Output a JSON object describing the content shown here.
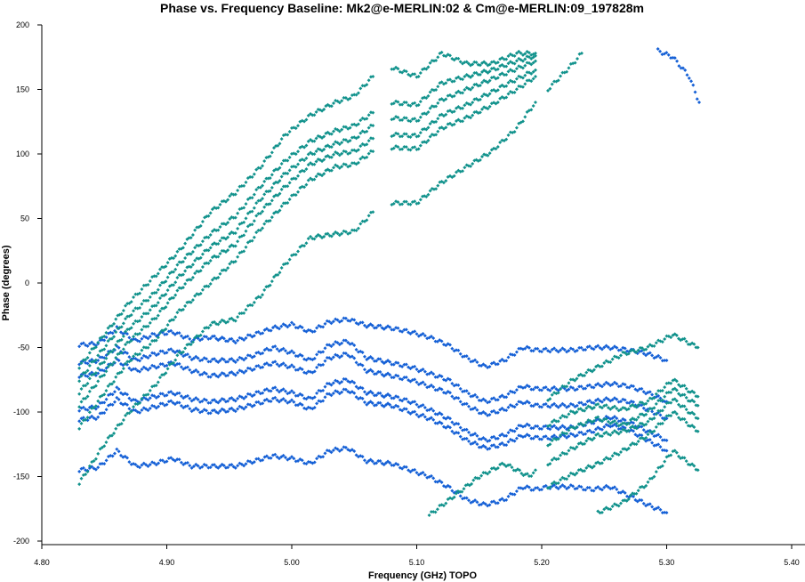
{
  "chart_data": {
    "type": "scatter",
    "title": "Phase vs. Frequency Baseline: Mk2@e-MERLIN:02 & Cm@e-MERLIN:09_197828m",
    "xlabel": "Frequency (GHz) TOPO",
    "ylabel": "Phase (degrees)",
    "xlim": [
      4.8,
      5.4
    ],
    "ylim": [
      -200,
      200
    ],
    "x_ticks": [
      "4.80",
      "4.90",
      "5.00",
      "5.10",
      "5.20",
      "5.30",
      "5.40"
    ],
    "y_ticks": [
      "200",
      "150",
      "100",
      "50",
      "0",
      "-50",
      "-100",
      "-150",
      "-200"
    ],
    "grid": false,
    "colors": {
      "blue": "#1560d6",
      "teal": "#11928c"
    },
    "series": [
      {
        "color": "blue",
        "x": [
          4.83,
          4.845,
          4.86,
          4.875,
          4.89,
          4.905,
          4.92,
          4.935,
          4.955,
          4.97,
          4.985,
          5.0,
          5.015,
          5.03,
          5.045,
          5.06,
          5.08,
          5.095,
          5.11,
          5.125,
          5.14,
          5.155,
          5.17,
          5.185,
          5.195,
          5.205,
          5.225,
          5.24,
          5.255,
          5.27,
          5.285,
          5.3
        ],
        "y": [
          -48,
          -47,
          -35,
          -45,
          -40,
          -38,
          -44,
          -42,
          -45,
          -40,
          -35,
          -32,
          -38,
          -30,
          -28,
          -33,
          -35,
          -38,
          -42,
          -48,
          -58,
          -65,
          -60,
          -50,
          -52,
          -52,
          -52,
          -50,
          -50,
          -52,
          -55,
          -60
        ]
      },
      {
        "color": "blue",
        "x": [
          4.83,
          4.845,
          4.86,
          4.875,
          4.89,
          4.905,
          4.92,
          4.935,
          4.955,
          4.97,
          4.985,
          5.0,
          5.015,
          5.03,
          5.045,
          5.06,
          5.08,
          5.095,
          5.11,
          5.125,
          5.14,
          5.155,
          5.17,
          5.185,
          5.195,
          5.205,
          5.225,
          5.24,
          5.255,
          5.27,
          5.285,
          5.3
        ],
        "y": [
          -62,
          -60,
          -50,
          -60,
          -55,
          -52,
          -58,
          -60,
          -60,
          -56,
          -50,
          -54,
          -60,
          -48,
          -45,
          -58,
          -62,
          -65,
          -70,
          -75,
          -85,
          -92,
          -88,
          -80,
          -82,
          -82,
          -82,
          -80,
          -78,
          -80,
          -85,
          -92
        ]
      },
      {
        "color": "blue",
        "x": [
          4.83,
          4.845,
          4.86,
          4.875,
          4.89,
          4.905,
          4.92,
          4.935,
          4.955,
          4.97,
          4.985,
          5.0,
          5.015,
          5.03,
          5.045,
          5.06,
          5.08,
          5.095,
          5.11,
          5.125,
          5.14,
          5.155,
          5.17,
          5.185,
          5.195,
          5.205,
          5.225,
          5.24,
          5.255,
          5.27,
          5.285,
          5.3
        ],
        "y": [
          -72,
          -70,
          -60,
          -68,
          -65,
          -62,
          -68,
          -72,
          -70,
          -66,
          -62,
          -65,
          -70,
          -58,
          -55,
          -68,
          -72,
          -75,
          -80,
          -85,
          -95,
          -102,
          -98,
          -92,
          -95,
          -95,
          -95,
          -92,
          -90,
          -92,
          -98,
          -105
        ]
      },
      {
        "color": "blue",
        "x": [
          4.83,
          4.845,
          4.86,
          4.875,
          4.89,
          4.905,
          4.92,
          4.935,
          4.955,
          4.97,
          4.985,
          5.0,
          5.015,
          5.03,
          5.045,
          5.06,
          5.08,
          5.095,
          5.11,
          5.125,
          5.14,
          5.155,
          5.17,
          5.185,
          5.195,
          5.205,
          5.225,
          5.24,
          5.255,
          5.27,
          5.285,
          5.3
        ],
        "y": [
          -98,
          -96,
          -82,
          -92,
          -88,
          -85,
          -90,
          -92,
          -90,
          -86,
          -82,
          -85,
          -90,
          -78,
          -75,
          -85,
          -88,
          -92,
          -98,
          -105,
          -115,
          -122,
          -118,
          -110,
          -112,
          -112,
          -112,
          -108,
          -104,
          -108,
          -115,
          -122
        ]
      },
      {
        "color": "blue",
        "x": [
          4.83,
          4.845,
          4.86,
          4.875,
          4.89,
          4.905,
          4.92,
          4.935,
          4.955,
          4.97,
          4.985,
          5.0,
          5.015,
          5.03,
          5.045,
          5.06,
          5.08,
          5.095,
          5.11,
          5.125,
          5.14,
          5.155,
          5.17,
          5.185,
          5.195,
          5.205,
          5.225,
          5.24,
          5.255,
          5.27,
          5.285,
          5.3
        ],
        "y": [
          -106,
          -104,
          -90,
          -100,
          -96,
          -92,
          -98,
          -100,
          -98,
          -94,
          -90,
          -92,
          -98,
          -86,
          -83,
          -93,
          -95,
          -100,
          -105,
          -112,
          -122,
          -128,
          -125,
          -118,
          -120,
          -120,
          -118,
          -115,
          -110,
          -114,
          -122,
          -130
        ]
      },
      {
        "color": "blue",
        "x": [
          4.83,
          4.845,
          4.86,
          4.875,
          4.89,
          4.905,
          4.92,
          4.935,
          4.955,
          4.97,
          4.985,
          5.0,
          5.015,
          5.03,
          5.045,
          5.06,
          5.08,
          5.095,
          5.11,
          5.125,
          5.14,
          5.155,
          5.17,
          5.185,
          5.195,
          5.205,
          5.225,
          5.24,
          5.255,
          5.27,
          5.285,
          5.3
        ],
        "y": [
          -145,
          -143,
          -130,
          -142,
          -140,
          -136,
          -142,
          -142,
          -142,
          -138,
          -134,
          -136,
          -140,
          -130,
          -128,
          -138,
          -140,
          -145,
          -150,
          -158,
          -168,
          -172,
          -168,
          -158,
          -160,
          -158,
          -158,
          -160,
          -158,
          -165,
          -172,
          -178
        ]
      },
      {
        "color": "teal",
        "x": [
          4.83,
          4.85,
          4.87,
          4.89,
          4.91,
          4.935,
          4.955,
          4.975,
          4.995,
          5.015,
          5.035,
          5.05,
          5.065
        ],
        "y": [
          -65,
          -40,
          -15,
          5,
          25,
          55,
          70,
          90,
          115,
          130,
          140,
          145,
          160
        ]
      },
      {
        "color": "teal",
        "x": [
          4.83,
          4.85,
          4.87,
          4.89,
          4.91,
          4.935,
          4.955,
          4.975,
          4.995,
          5.015,
          5.035,
          5.05,
          5.065
        ],
        "y": [
          -75,
          -50,
          -25,
          -8,
          15,
          38,
          52,
          75,
          95,
          110,
          118,
          122,
          132
        ]
      },
      {
        "color": "teal",
        "x": [
          4.83,
          4.85,
          4.87,
          4.89,
          4.91,
          4.935,
          4.955,
          4.975,
          4.995,
          5.015,
          5.035,
          5.05,
          5.065
        ],
        "y": [
          -85,
          -60,
          -35,
          -18,
          5,
          28,
          40,
          65,
          85,
          100,
          108,
          112,
          122
        ]
      },
      {
        "color": "teal",
        "x": [
          4.83,
          4.85,
          4.87,
          4.89,
          4.91,
          4.935,
          4.955,
          4.975,
          4.995,
          5.015,
          5.035,
          5.05,
          5.065
        ],
        "y": [
          -95,
          -70,
          -45,
          -28,
          -5,
          18,
          30,
          55,
          75,
          92,
          100,
          102,
          112
        ]
      },
      {
        "color": "teal",
        "x": [
          4.83,
          4.85,
          4.87,
          4.89,
          4.91,
          4.935,
          4.955,
          4.975,
          4.995,
          5.015,
          5.035,
          5.05,
          5.065
        ],
        "y": [
          -112,
          -85,
          -60,
          -45,
          -22,
          0,
          18,
          42,
          62,
          80,
          90,
          92,
          102
        ]
      },
      {
        "color": "teal",
        "x": [
          4.83,
          4.85,
          4.87,
          4.89,
          4.91,
          4.935,
          4.955,
          4.975,
          4.995,
          5.015,
          5.035,
          5.05,
          5.065
        ],
        "y": [
          -155,
          -125,
          -100,
          -80,
          -55,
          -32,
          -28,
          -10,
          15,
          35,
          38,
          40,
          55
        ]
      },
      {
        "color": "teal",
        "x": [
          5.08,
          5.1,
          5.12,
          5.14,
          5.16,
          5.18,
          5.195
        ],
        "y": [
          167,
          160,
          178,
          170,
          170,
          178,
          178
        ]
      },
      {
        "color": "teal",
        "x": [
          5.08,
          5.1,
          5.12,
          5.14,
          5.16,
          5.18,
          5.195
        ],
        "y": [
          140,
          138,
          155,
          160,
          165,
          172,
          176
        ]
      },
      {
        "color": "teal",
        "x": [
          5.08,
          5.1,
          5.12,
          5.14,
          5.16,
          5.18,
          5.195
        ],
        "y": [
          128,
          126,
          142,
          150,
          158,
          166,
          172
        ]
      },
      {
        "color": "teal",
        "x": [
          5.08,
          5.1,
          5.12,
          5.14,
          5.16,
          5.18,
          5.195
        ],
        "y": [
          115,
          114,
          130,
          138,
          148,
          158,
          165
        ]
      },
      {
        "color": "teal",
        "x": [
          5.08,
          5.1,
          5.12,
          5.14,
          5.16,
          5.18,
          5.195
        ],
        "y": [
          105,
          104,
          120,
          128,
          138,
          150,
          160
        ]
      },
      {
        "color": "teal",
        "x": [
          5.08,
          5.1,
          5.12,
          5.14,
          5.16,
          5.18,
          5.195
        ],
        "y": [
          62,
          62,
          78,
          90,
          102,
          120,
          140
        ]
      },
      {
        "color": "teal",
        "x": [
          5.11,
          5.13,
          5.15,
          5.17,
          5.19,
          5.195
        ],
        "y": [
          -180,
          -165,
          -150,
          -140,
          -150,
          -145
        ]
      },
      {
        "color": "teal",
        "x": [
          5.205,
          5.215,
          5.225,
          5.232
        ],
        "y": [
          150,
          160,
          170,
          178
        ]
      },
      {
        "color": "teal",
        "x": [
          5.205,
          5.225,
          5.245,
          5.265,
          5.285,
          5.305,
          5.325
        ],
        "y": [
          -90,
          -75,
          -65,
          -55,
          -50,
          -40,
          -50
        ]
      },
      {
        "color": "teal",
        "x": [
          5.205,
          5.225,
          5.245,
          5.265,
          5.285,
          5.305,
          5.325
        ],
        "y": [
          -110,
          -100,
          -95,
          -98,
          -92,
          -75,
          -88
        ]
      },
      {
        "color": "teal",
        "x": [
          5.205,
          5.225,
          5.245,
          5.265,
          5.285,
          5.305,
          5.325
        ],
        "y": [
          -125,
          -112,
          -105,
          -110,
          -100,
          -82,
          -95
        ]
      },
      {
        "color": "teal",
        "x": [
          5.205,
          5.225,
          5.245,
          5.265,
          5.285,
          5.305,
          5.325
        ],
        "y": [
          -140,
          -128,
          -118,
          -115,
          -108,
          -90,
          -105
        ]
      },
      {
        "color": "teal",
        "x": [
          5.205,
          5.225,
          5.245,
          5.265,
          5.285,
          5.305,
          5.325
        ],
        "y": [
          -158,
          -148,
          -140,
          -130,
          -118,
          -100,
          -115
        ]
      },
      {
        "color": "teal",
        "x": [
          5.245,
          5.265,
          5.285,
          5.305,
          5.325
        ],
        "y": [
          -178,
          -170,
          -155,
          -130,
          -145
        ]
      },
      {
        "color": "blue",
        "x": [
          5.293,
          5.305,
          5.318,
          5.326
        ],
        "y": [
          180,
          175,
          160,
          140
        ]
      }
    ]
  }
}
